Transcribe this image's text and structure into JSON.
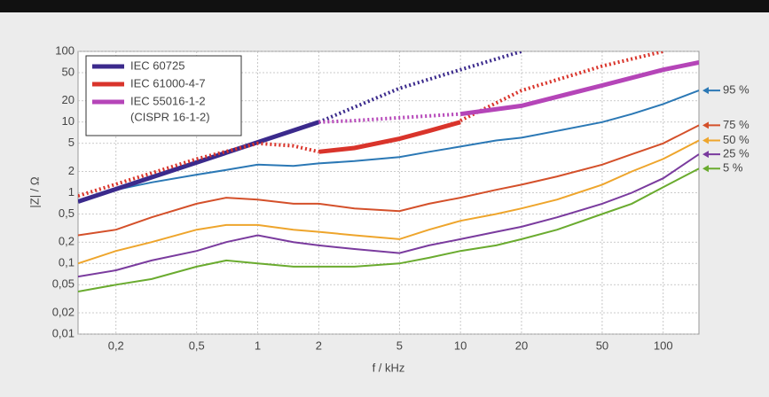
{
  "chart_data": {
    "type": "line",
    "x_label": "f / kHz",
    "y_label": "|Z| / Ω",
    "log_x": true,
    "log_y": true,
    "grid": true,
    "legend": "upper left",
    "xlim": [
      0.13,
      150
    ],
    "ylim": [
      0.01,
      100
    ],
    "xticks": [
      {
        "value": 0.2,
        "label": "0,2"
      },
      {
        "value": 0.5,
        "label": "0,5"
      },
      1,
      2,
      5,
      10,
      20,
      50,
      100
    ],
    "yticks": [
      100,
      50,
      20,
      10,
      5,
      2,
      1,
      {
        "value": 0.5,
        "label": "0,5"
      },
      {
        "value": 0.2,
        "label": "0,2"
      },
      {
        "value": 0.1,
        "label": "0,1"
      },
      {
        "value": 0.05,
        "label": "0,05"
      },
      {
        "value": 0.02,
        "label": "0,02"
      },
      {
        "value": 0.01,
        "label": "0,01"
      }
    ],
    "series": [
      {
        "name": "IEC 60725",
        "color": "#3b2a8c",
        "x": [
          0.13,
          2
        ],
        "values": [
          0.75,
          10
        ],
        "dotted_x": [
          2,
          5,
          10,
          20
        ],
        "dotted_values": [
          10,
          30,
          55,
          100
        ]
      },
      {
        "name": "IEC 61000-4-7",
        "color": "#d9342b",
        "x": [
          2,
          3,
          5,
          7,
          10
        ],
        "values": [
          3.8,
          4.3,
          5.8,
          7.5,
          10
        ],
        "dotted_x": [
          0.13,
          0.3,
          0.5,
          1,
          1.5,
          2,
          5,
          10,
          20,
          50,
          100
        ],
        "dotted_values": [
          0.9,
          1.9,
          3,
          5,
          4.6,
          3.8,
          null,
          10.5,
          28,
          62,
          100
        ]
      },
      {
        "name": "IEC 55016-1-2",
        "subname": "(CISPR 16-1-2)",
        "color": "#b545b8",
        "x": [
          10,
          20,
          50,
          100,
          150
        ],
        "values": [
          13,
          17,
          33,
          55,
          70
        ],
        "dotted_x": [
          2,
          3,
          5,
          8,
          10
        ],
        "dotted_values": [
          10,
          10.5,
          11.5,
          12.5,
          13
        ]
      }
    ],
    "x": [
      0.13,
      0.2,
      0.3,
      0.5,
      0.7,
      1,
      1.5,
      2,
      3,
      5,
      7,
      10,
      15,
      20,
      30,
      50,
      70,
      100,
      150
    ],
    "percentiles": [
      {
        "name": "95 %",
        "color": "#2b78b5",
        "values": [
          0.75,
          1.1,
          1.4,
          1.8,
          2.1,
          2.5,
          2.4,
          2.6,
          2.8,
          3.2,
          3.8,
          4.5,
          5.5,
          6,
          7.5,
          10,
          13,
          18,
          28
        ]
      },
      {
        "name": "75 %",
        "color": "#d4502a",
        "values": [
          0.25,
          0.3,
          0.45,
          0.7,
          0.85,
          0.8,
          0.7,
          0.7,
          0.6,
          0.55,
          0.7,
          0.85,
          1.1,
          1.3,
          1.7,
          2.5,
          3.5,
          5,
          9
        ]
      },
      {
        "name": "50 %",
        "color": "#eea52c",
        "values": [
          0.1,
          0.15,
          0.2,
          0.3,
          0.35,
          0.35,
          0.3,
          0.28,
          0.25,
          0.22,
          0.3,
          0.4,
          0.5,
          0.6,
          0.8,
          1.3,
          2,
          3,
          5.5
        ]
      },
      {
        "name": "25 %",
        "color": "#7a3b9e",
        "values": [
          0.065,
          0.08,
          0.11,
          0.15,
          0.2,
          0.25,
          0.2,
          0.18,
          0.16,
          0.14,
          0.18,
          0.22,
          0.28,
          0.33,
          0.45,
          0.7,
          1,
          1.6,
          3.5
        ]
      },
      {
        "name": "5 %",
        "color": "#6aab2f",
        "values": [
          0.04,
          0.05,
          0.06,
          0.09,
          0.11,
          0.1,
          0.09,
          0.09,
          0.09,
          0.1,
          0.12,
          0.15,
          0.18,
          0.22,
          0.3,
          0.5,
          0.7,
          1.2,
          2.2
        ]
      }
    ]
  }
}
